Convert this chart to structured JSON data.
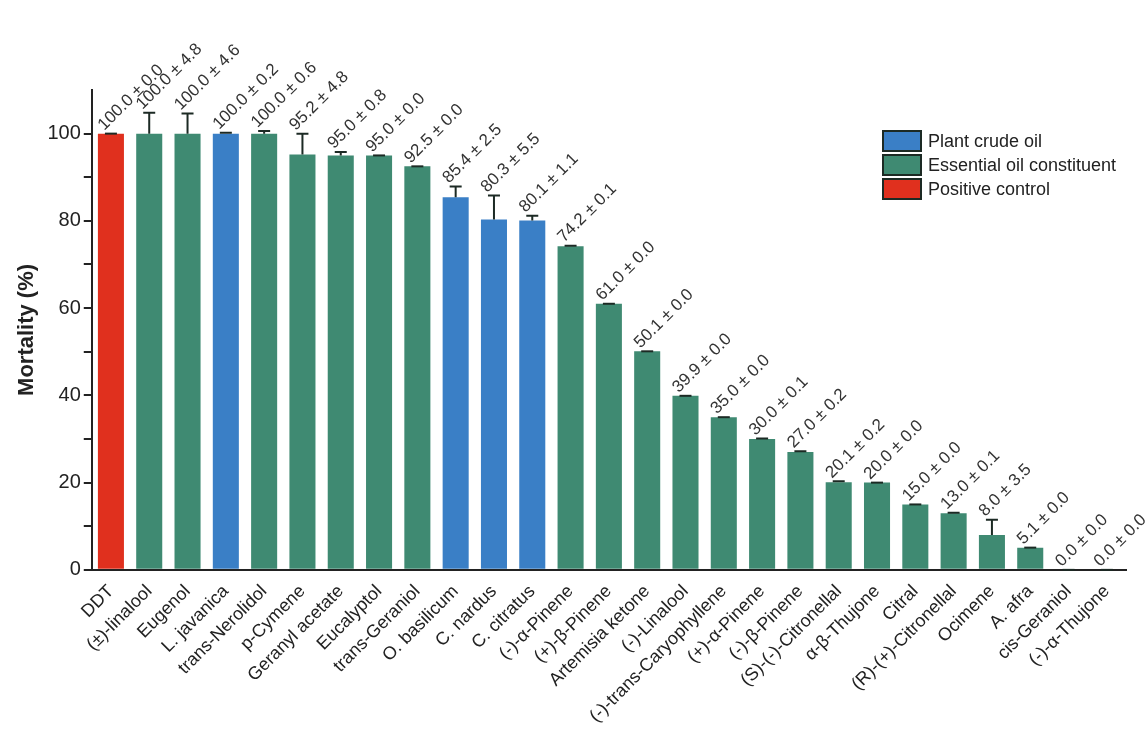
{
  "chart_data": {
    "type": "bar",
    "ylabel": "Mortality (%)",
    "categories": [
      "DDT",
      "(±)-linalool",
      "Eugenol",
      "L. javanica",
      "trans-Nerolidol",
      "p-Cymene",
      "Geranyl acetate",
      "Eucalyptol",
      "trans-Geraniol",
      "O. basilicum",
      "C. nardus",
      "C. citratus",
      "(-)-α-Pinene",
      "(+)-β-Pinene",
      "Artemisia ketone",
      "(-)-Linalool",
      "(-)-trans-Caryophyllene",
      "(+)-α-Pinene",
      "(-)-β-Pinene",
      "(S)-(-)-Citronellal",
      "α-β-Thujone",
      "Citral",
      "(R)-(+)-Citronellal",
      "Ocimene",
      "A. afra",
      "cis-Geraniol",
      "(-)-α-Thujone"
    ],
    "series": [
      {
        "name": "Plant crude oil",
        "color": "#3a7fc6",
        "values": [
          null,
          null,
          null,
          100.0,
          null,
          null,
          null,
          null,
          null,
          85.4,
          80.3,
          80.1,
          null,
          null,
          null,
          null,
          null,
          null,
          null,
          null,
          null,
          null,
          null,
          null,
          null,
          null,
          null
        ],
        "errors": [
          null,
          null,
          null,
          0.2,
          null,
          null,
          null,
          null,
          null,
          2.5,
          5.5,
          1.1,
          null,
          null,
          null,
          null,
          null,
          null,
          null,
          null,
          null,
          null,
          null,
          null,
          null,
          null,
          null
        ]
      },
      {
        "name": "Essential oil constituent",
        "color": "#3f8a72",
        "values": [
          null,
          100.0,
          100.0,
          null,
          100.0,
          95.2,
          95.0,
          95.0,
          92.5,
          null,
          null,
          null,
          74.2,
          61.0,
          50.1,
          39.9,
          35.0,
          30.0,
          27.0,
          20.1,
          20.0,
          15.0,
          13.0,
          8.0,
          5.1,
          0.0,
          0.0
        ],
        "errors": [
          null,
          4.8,
          4.6,
          null,
          0.6,
          4.8,
          0.8,
          0.0,
          0.0,
          null,
          null,
          null,
          0.1,
          0.0,
          0.0,
          0.0,
          0.0,
          0.1,
          0.2,
          0.2,
          0.0,
          0.0,
          0.1,
          3.5,
          0.0,
          0.0,
          0.0
        ]
      },
      {
        "name": "Positive control",
        "color": "#e0301e",
        "values": [
          100.0,
          null,
          null,
          null,
          null,
          null,
          null,
          null,
          null,
          null,
          null,
          null,
          null,
          null,
          null,
          null,
          null,
          null,
          null,
          null,
          null,
          null,
          null,
          null,
          null,
          null,
          null
        ],
        "errors": [
          0.0,
          null,
          null,
          null,
          null,
          null,
          null,
          null,
          null,
          null,
          null,
          null,
          null,
          null,
          null,
          null,
          null,
          null,
          null,
          null,
          null,
          null,
          null,
          null,
          null,
          null,
          null
        ]
      }
    ],
    "value_labels": [
      "100.0 ± 0.0",
      "100.0 ± 4.8",
      "100.0 ± 4.6",
      "100.0 ± 0.2",
      "100.0 ± 0.6",
      "95.2 ± 4.8",
      "95.0 ± 0.8",
      "95.0 ± 0.0",
      "92.5 ± 0.0",
      "85.4 ± 2.5",
      "80.3 ± 5.5",
      "80.1 ± 1.1",
      "74.2 ± 0.1",
      "61.0 ± 0.0",
      "50.1 ± 0.0",
      "39.9 ± 0.0",
      "35.0 ± 0.0",
      "30.0 ± 0.1",
      "27.0 ± 0.2",
      "20.1 ± 0.2",
      "20.0 ± 0.0",
      "15.0 ± 0.0",
      "13.0 ± 0.1",
      "8.0 ± 3.5",
      "5.1 ± 0.0",
      "0.0 ± 0.0",
      "0.0 ± 0.0"
    ],
    "ylim": [
      0,
      110
    ],
    "yticks": [
      0,
      {
        "value": 10,
        "label": null
      },
      20,
      {
        "value": 30,
        "label": null
      },
      40,
      {
        "value": 50,
        "label": null
      },
      60,
      {
        "value": 70,
        "label": null
      },
      80,
      {
        "value": 90,
        "label": null
      },
      100
    ],
    "grid": false,
    "legend": "top right"
  }
}
